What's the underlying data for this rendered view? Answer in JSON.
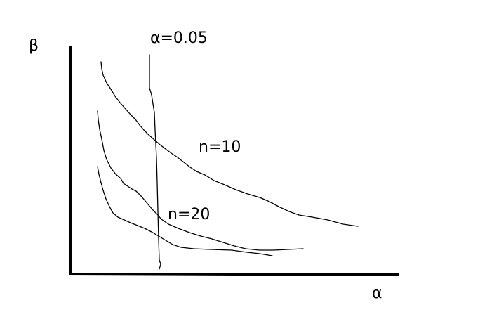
{
  "axes": {
    "y_label": "β",
    "x_label": "α"
  },
  "annotations": {
    "alpha_marker": "α=0.05",
    "curve_n10": "n=10",
    "curve_n20": "n=20"
  },
  "colors": {
    "ink": "#000000",
    "background": "#ffffff"
  }
}
